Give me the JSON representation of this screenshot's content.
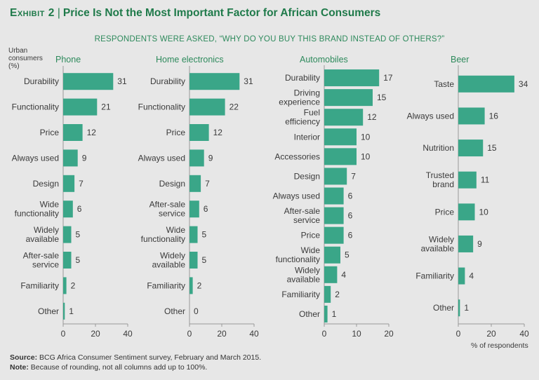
{
  "header": {
    "exhibit_label": "Exhibit 2",
    "title": "Price Is Not the Most Important Factor for African Consumers",
    "subtitle": "RESPONDENTS WERE ASKED, “WHY DO YOU BUY THIS BRAND INSTEAD OF OTHERS?”",
    "ylabel": [
      "Urban",
      "consumers",
      "(%)"
    ]
  },
  "colors": {
    "bar": "#3aa688",
    "title": "#1f7a4a",
    "accent": "#2e8a5c"
  },
  "axis_unit_label": "% of respondents",
  "footer": {
    "source_label": "Source:",
    "source_text": "BCG Africa Consumer Sentiment survey, February and March 2015.",
    "note_label": "Note:",
    "note_text": "Because of rounding, not all columns add up to 100%."
  },
  "chart_data": [
    {
      "type": "bar",
      "orientation": "horizontal",
      "title": "Phone",
      "categories": [
        "Durability",
        "Functionality",
        "Price",
        "Always used",
        "Design",
        "Wide functionality",
        "Widely available",
        "After-sale service",
        "Familiarity",
        "Other"
      ],
      "values": [
        31,
        21,
        12,
        9,
        7,
        6,
        5,
        5,
        2,
        1
      ],
      "xlim": [
        0,
        40
      ],
      "ticks": [
        0,
        20,
        40
      ]
    },
    {
      "type": "bar",
      "orientation": "horizontal",
      "title": "Home electronics",
      "categories": [
        "Durability",
        "Functionality",
        "Price",
        "Always used",
        "Design",
        "After-sale service",
        "Wide functionality",
        "Widely available",
        "Familiarity",
        "Other"
      ],
      "values": [
        31,
        22,
        12,
        9,
        7,
        6,
        5,
        5,
        2,
        0
      ],
      "xlim": [
        0,
        40
      ],
      "ticks": [
        0,
        20,
        40
      ]
    },
    {
      "type": "bar",
      "orientation": "horizontal",
      "title": "Automobiles",
      "categories": [
        "Durability",
        "Driving experience",
        "Fuel efficiency",
        "Interior",
        "Accessories",
        "Design",
        "Always used",
        "After-sale service",
        "Price",
        "Wide functionality",
        "Widely available",
        "Familiarity",
        "Other"
      ],
      "values": [
        17,
        15,
        12,
        10,
        10,
        7,
        6,
        6,
        6,
        5,
        4,
        2,
        1
      ],
      "xlim": [
        0,
        20
      ],
      "ticks": [
        0,
        10,
        20
      ]
    },
    {
      "type": "bar",
      "orientation": "horizontal",
      "title": "Beer",
      "categories": [
        "Taste",
        "Always used",
        "Nutrition",
        "Trusted brand",
        "Price",
        "Widely available",
        "Familiarity",
        "Other"
      ],
      "values": [
        34,
        16,
        15,
        11,
        10,
        9,
        4,
        1
      ],
      "xlim": [
        0,
        40
      ],
      "ticks": [
        0,
        20,
        40
      ]
    }
  ]
}
